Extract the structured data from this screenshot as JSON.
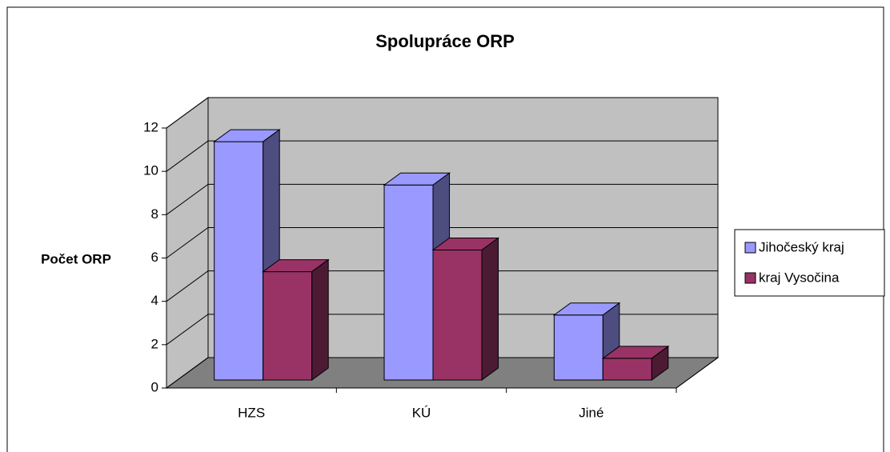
{
  "chart_data": {
    "type": "bar3d",
    "title": "Spolupráce ORP",
    "y_label": "Počet ORP",
    "categories": [
      "HZS",
      "KÚ",
      "Jiné"
    ],
    "series": [
      {
        "name": "Jihočeský kraj",
        "color": "#9999ff",
        "values": [
          11,
          9,
          3
        ]
      },
      {
        "name": "kraj Vysočina",
        "color": "#993366",
        "values": [
          5,
          6,
          1
        ]
      }
    ],
    "ylim": [
      0,
      12
    ],
    "yticks": [
      0,
      2,
      4,
      6,
      8,
      10,
      12
    ],
    "grid": true,
    "legend": "right"
  }
}
